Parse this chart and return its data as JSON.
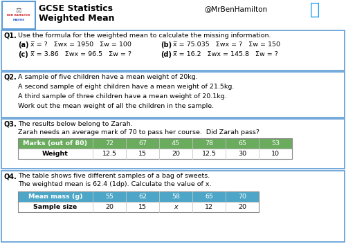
{
  "title_main": "GCSE Statistics",
  "title_sub": "Weighted Mean",
  "handle": "@MrBenHamilton",
  "bg_color": "#ffffff",
  "border_color": "#5b9bd5",
  "header_bg": "#4da6c8",
  "q3_header_bg": "#6aab5e",
  "q1_text": "Use the formula for the weighted mean to calculate the missing information.",
  "q2_lines": [
    "A sample of five children have a mean weight of 20kg.",
    "A second sample of eight children have a mean weight of 21.5kg.",
    "A third sample of three children have a mean weight of 20.1kg.",
    "Work out the mean weight of all the children in the sample."
  ],
  "q3_line1": "The results below belong to Zarah.",
  "q3_line2": "Zarah needs an average mark of 70 to pass her course.  Did Zarah pass?",
  "q3_headers": [
    "Marks (out of 80)",
    "72",
    "67",
    "45",
    "78",
    "65",
    "53"
  ],
  "q3_row": [
    "Weight",
    "12.5",
    "15",
    "20",
    "12.5",
    "30",
    "10"
  ],
  "q4_line1": "The table shows five different samples of a bag of sweets.",
  "q4_line2": "The weighted mean is 62.4 (1dp). Calculate the value of x.",
  "q4_headers": [
    "Mean mass (g)",
    "55",
    "62",
    "58",
    "65",
    "70"
  ],
  "q4_row": [
    "Sample size",
    "20",
    "15",
    "x",
    "12",
    "20"
  ]
}
